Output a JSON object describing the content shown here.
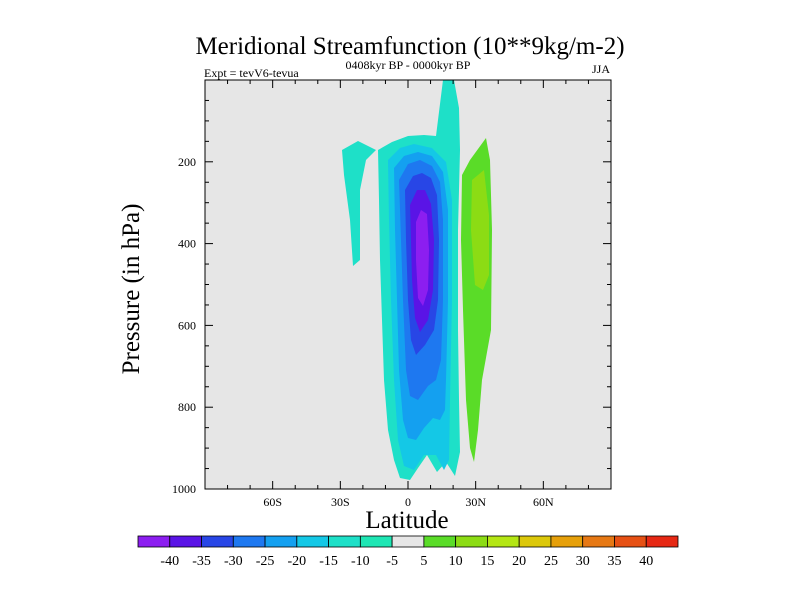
{
  "chart_data": {
    "type": "heatmap",
    "title": "Meridional Streamfunction (10**9kg/m-2)",
    "subtitle_left": "Expt = tevV6-tevua",
    "subtitle_center": "0408kyr BP - 0000kyr BP",
    "subtitle_right": "JJA",
    "xlabel": "Latitude",
    "ylabel": "Pressure (in hPa)",
    "xlim": [
      -90,
      90
    ],
    "ylim": [
      1000,
      0
    ],
    "x_ticks": [
      {
        "value": -60,
        "label": "60S"
      },
      {
        "value": -30,
        "label": "30S"
      },
      {
        "value": 0,
        "label": "0"
      },
      {
        "value": 30,
        "label": "30N"
      },
      {
        "value": 60,
        "label": "60N"
      }
    ],
    "y_ticks": [
      {
        "value": 200,
        "label": "200"
      },
      {
        "value": 400,
        "label": "400"
      },
      {
        "value": 600,
        "label": "600"
      },
      {
        "value": 800,
        "label": "800"
      },
      {
        "value": 1000,
        "label": "1000"
      }
    ],
    "background_color": "#e6e6e6",
    "colorbar": {
      "levels": [
        -40,
        -35,
        -30,
        -25,
        -20,
        -15,
        -10,
        -5,
        5,
        10,
        15,
        20,
        25,
        30,
        35,
        40
      ],
      "colors": [
        "#8c1ef0",
        "#5a14e6",
        "#2846e6",
        "#1e78f0",
        "#14a0f0",
        "#14c8e6",
        "#1ee0c8",
        "#1ee6b4",
        "#e6e6e6",
        "#5adc28",
        "#8cdc14",
        "#b4e614",
        "#dcc80a",
        "#e6a00a",
        "#e67814",
        "#e65014",
        "#e62814"
      ]
    },
    "features": [
      {
        "name": "southern-upper-cell",
        "value": -10,
        "lat": [
          -20,
          -10
        ],
        "pressure": [
          150,
          450
        ]
      },
      {
        "name": "tropical-negative-cell",
        "value": -40,
        "lat": [
          -10,
          25
        ],
        "pressure": [
          0,
          980
        ],
        "core_lat": 5,
        "core_pressure": 420
      },
      {
        "name": "northern-positive-cell",
        "value": 15,
        "lat": [
          25,
          38
        ],
        "pressure": [
          140,
          930
        ],
        "core_lat": 32,
        "core_pressure": 400
      }
    ]
  }
}
